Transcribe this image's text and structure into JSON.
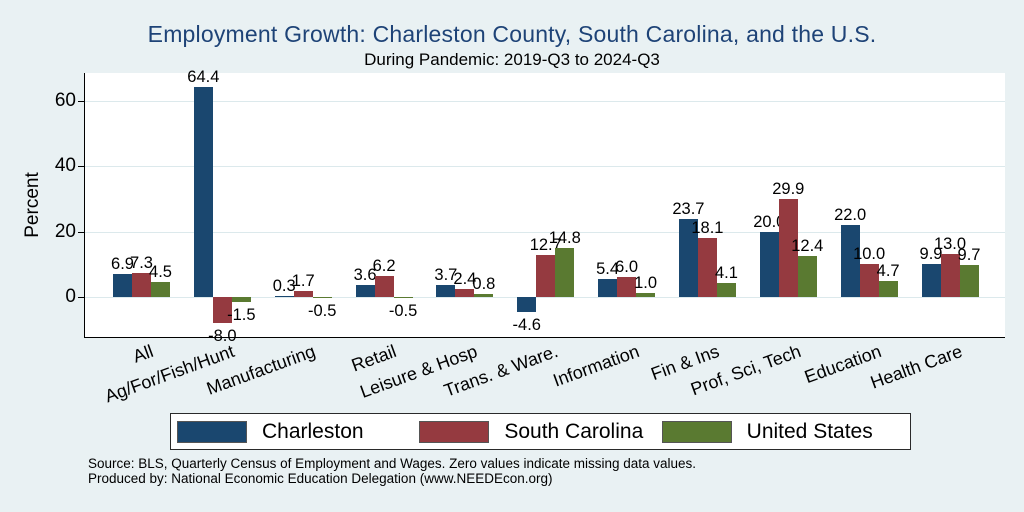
{
  "chart_data": {
    "type": "bar",
    "title": "Employment Growth: Charleston County, South Carolina, and the U.S.",
    "subtitle": "During Pandemic: 2019-Q3 to 2024-Q3",
    "ylabel": "Percent",
    "xlabel": "",
    "yticks": [
      0,
      20,
      40,
      60
    ],
    "ylim": [
      -12.4,
      68.7
    ],
    "grid": true,
    "legend_position": "bottom",
    "value_labels": "all bars labeled, 1 decimal place",
    "categories": [
      "All",
      "Ag/For/Fish/Hunt",
      "Manufacturing",
      "Retail",
      "Leisure & Hosp",
      "Trans. & Ware.",
      "Information",
      "Fin & Ins",
      "Prof, Sci, Tech",
      "Education",
      "Health Care"
    ],
    "series": [
      {
        "name": "Charleston",
        "color": "#1a476f",
        "values": [
          6.9,
          64.4,
          0.3,
          3.6,
          3.7,
          -4.6,
          5.4,
          23.7,
          20.0,
          22.0,
          9.9
        ]
      },
      {
        "name": "South Carolina",
        "color": "#953a40",
        "values": [
          7.3,
          -8.0,
          1.7,
          6.2,
          2.4,
          12.7,
          6.0,
          18.1,
          29.9,
          10.0,
          13.0
        ]
      },
      {
        "name": "United States",
        "color": "#5a7a31",
        "values": [
          4.5,
          -1.5,
          -0.5,
          -0.5,
          0.8,
          14.8,
          1.0,
          4.1,
          12.4,
          4.7,
          9.7
        ]
      }
    ]
  },
  "footer": {
    "source_line1": "Source: BLS, Quarterly Census of Employment and Wages. Zero values indicate missing data values.",
    "source_line2": "Produced by: National Economic Education Delegation (www.NEEDEcon.org)"
  },
  "colors": {
    "background": "#e9f1f3",
    "plot_background": "#ffffff",
    "gridline": "#dce9ec",
    "axis": "#000000",
    "title_text": "#1e4377"
  }
}
